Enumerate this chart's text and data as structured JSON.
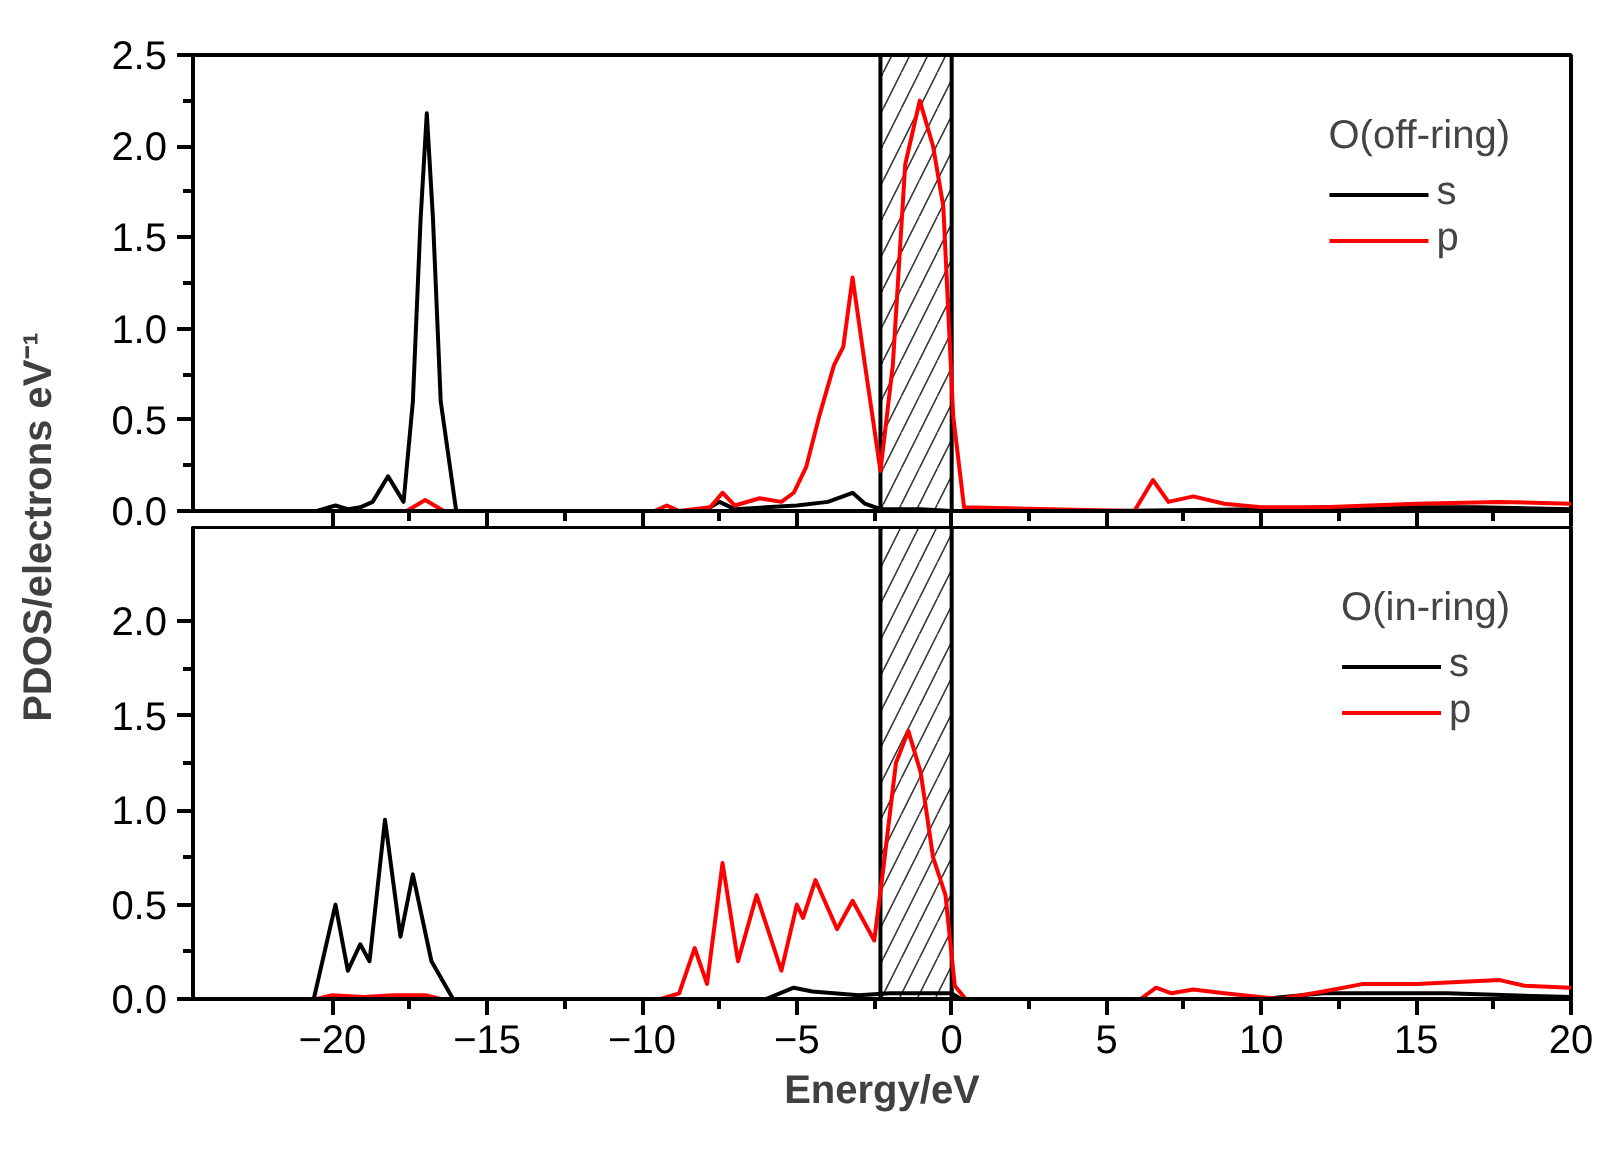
{
  "chart_data": [
    {
      "type": "line",
      "legend_title": "O(off-ring)",
      "ylabel": "PDOS/electrons eV⁻¹",
      "xlim": [
        -24.5,
        20
      ],
      "xticks": [
        -20,
        -15,
        -10,
        -5,
        0,
        5,
        10,
        15,
        20
      ],
      "ylim": [
        0,
        2.5
      ],
      "yticks": [
        {
          "value": 0,
          "label": "0.0"
        },
        0.5,
        {
          "value": 1,
          "label": "1.0"
        },
        1.5,
        {
          "value": 2,
          "label": "2.0"
        },
        2.5
      ],
      "tick_labels": "y",
      "legend": "top right",
      "grid": false,
      "bands": [
        {
          "axis": "x",
          "from": -2.3,
          "to": 0,
          "color": "#000000"
        }
      ],
      "series": [
        {
          "name": "s",
          "color": "#000000",
          "x": [
            -24.5,
            -20.5,
            -19.9,
            -19.5,
            -19.1,
            -18.7,
            -18.2,
            -17.7,
            -17.4,
            -17.15,
            -16.95,
            -16.75,
            -16.5,
            -16.0,
            -15,
            -8,
            -7.5,
            -7,
            -6,
            -5,
            -4,
            -3.2,
            -2.8,
            -2.3,
            -1,
            0,
            5,
            10,
            12,
            15,
            17,
            20
          ],
          "values": [
            0,
            0,
            0.03,
            0.01,
            0.02,
            0.05,
            0.19,
            0.05,
            0.6,
            1.6,
            2.18,
            1.6,
            0.6,
            0,
            0,
            0,
            0.05,
            0.01,
            0.02,
            0.03,
            0.05,
            0.1,
            0.04,
            0.01,
            0.01,
            0,
            0,
            0.01,
            0.02,
            0.02,
            0.02,
            0.01
          ]
        },
        {
          "name": "p",
          "color": "#ff0000",
          "x": [
            -17.6,
            -17.0,
            -16.4,
            -9.6,
            -9.2,
            -8.8,
            -7.8,
            -7.4,
            -7.0,
            -6.2,
            -5.5,
            -5.1,
            -4.7,
            -4.26,
            -3.8,
            -3.5,
            -3.2,
            -2.8,
            -2.3,
            -1.9,
            -1.5,
            -1.03,
            -0.6,
            -0.27,
            0.05,
            0.4,
            5.9,
            6.5,
            7.0,
            7.8,
            8.8,
            10,
            12,
            15,
            17.7,
            20
          ],
          "values": [
            0,
            0.06,
            0,
            0,
            0.03,
            0,
            0.02,
            0.1,
            0.03,
            0.07,
            0.05,
            0.1,
            0.24,
            0.53,
            0.8,
            0.9,
            1.28,
            0.8,
            0.22,
            0.8,
            1.9,
            2.25,
            2.0,
            1.67,
            0.52,
            0.02,
            0,
            0.17,
            0.05,
            0.08,
            0.04,
            0.02,
            0.02,
            0.04,
            0.05,
            0.04
          ]
        }
      ]
    },
    {
      "type": "line",
      "legend_title": "O(in-ring)",
      "xlabel": "Energy/eV",
      "xlim": [
        -24.5,
        20
      ],
      "xticks": [
        -20,
        -15,
        -10,
        -5,
        0,
        5,
        10,
        15,
        20
      ],
      "ylim": [
        0,
        2.5
      ],
      "yticks": [
        {
          "value": 0,
          "label": "0.0"
        },
        0.5,
        {
          "value": 1,
          "label": "1.0"
        },
        1.5,
        {
          "value": 2,
          "label": "2.0"
        }
      ],
      "legend": "top right",
      "grid": false,
      "bands": [
        {
          "axis": "x",
          "from": -2.3,
          "to": 0,
          "color": "#000000"
        }
      ],
      "series": [
        {
          "name": "s",
          "color": "#000000",
          "x": [
            -24.5,
            -20.6,
            -19.9,
            -19.5,
            -19.1,
            -18.8,
            -18.3,
            -17.8,
            -17.4,
            -16.8,
            -16.1,
            -6,
            -5.1,
            -4.5,
            -3,
            -2,
            -1,
            0,
            0.3,
            10,
            12,
            14,
            16,
            20
          ],
          "values": [
            0,
            0,
            0.5,
            0.15,
            0.29,
            0.2,
            0.95,
            0.33,
            0.66,
            0.2,
            0,
            0,
            0.06,
            0.04,
            0.02,
            0.03,
            0.03,
            0.03,
            0,
            0,
            0.03,
            0.03,
            0.03,
            0.01
          ]
        },
        {
          "name": "p",
          "color": "#ff0000",
          "x": [
            -20.5,
            -20,
            -19,
            -18,
            -17,
            -16.5,
            -9.4,
            -8.8,
            -8.3,
            -7.9,
            -7.4,
            -6.9,
            -6.3,
            -5.5,
            -5.0,
            -4.8,
            -4.4,
            -3.7,
            -3.2,
            -2.5,
            -2.2,
            -1.8,
            -1.4,
            -1.0,
            -0.6,
            -0.2,
            0.1,
            0.45,
            6.1,
            6.6,
            7.1,
            7.8,
            8.8,
            10.6,
            12,
            13.3,
            15,
            17.7,
            18.5,
            20
          ],
          "values": [
            0,
            0.02,
            0.01,
            0.02,
            0.02,
            0,
            0,
            0.03,
            0.27,
            0.08,
            0.72,
            0.2,
            0.55,
            0.15,
            0.5,
            0.43,
            0.63,
            0.37,
            0.52,
            0.31,
            0.7,
            1.25,
            1.42,
            1.2,
            0.75,
            0.55,
            0.07,
            0,
            0,
            0.06,
            0.03,
            0.05,
            0.03,
            0,
            0.04,
            0.08,
            0.08,
            0.1,
            0.07,
            0.06
          ]
        }
      ]
    }
  ]
}
